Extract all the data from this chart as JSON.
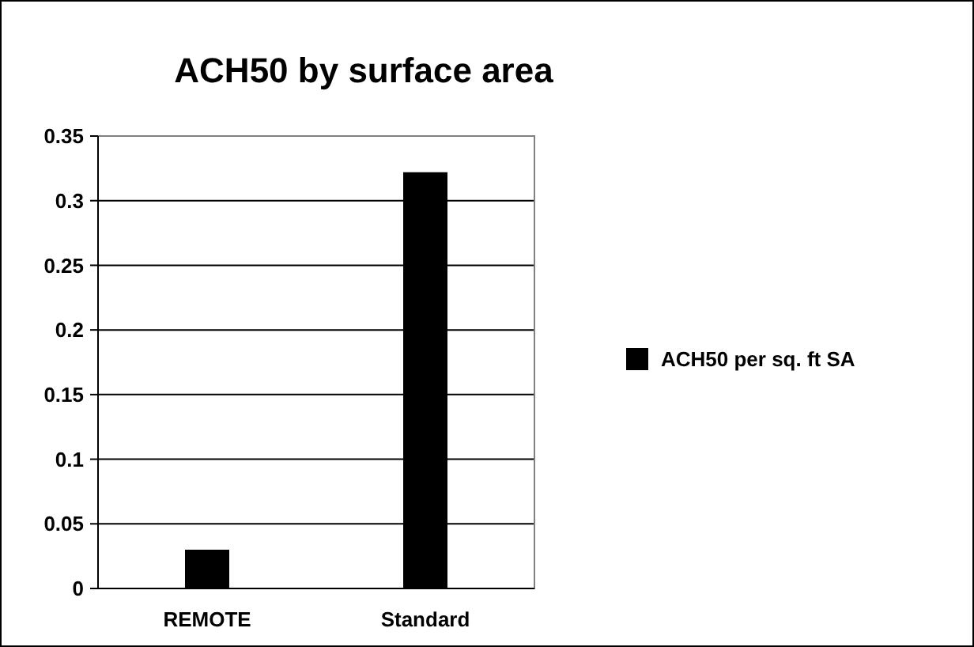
{
  "chart_data": {
    "type": "bar",
    "title": "ACH50 by surface area",
    "categories": [
      "REMOTE",
      "Standard"
    ],
    "series": [
      {
        "name": "ACH50 per sq. ft SA",
        "color": "#000000",
        "values": [
          0.03,
          0.322
        ]
      }
    ],
    "ylim": [
      0,
      0.35
    ],
    "yticks": [
      0,
      0.05,
      0.1,
      0.15,
      0.2,
      0.25,
      0.3,
      0.35
    ],
    "grid": "y",
    "legend": "right"
  }
}
